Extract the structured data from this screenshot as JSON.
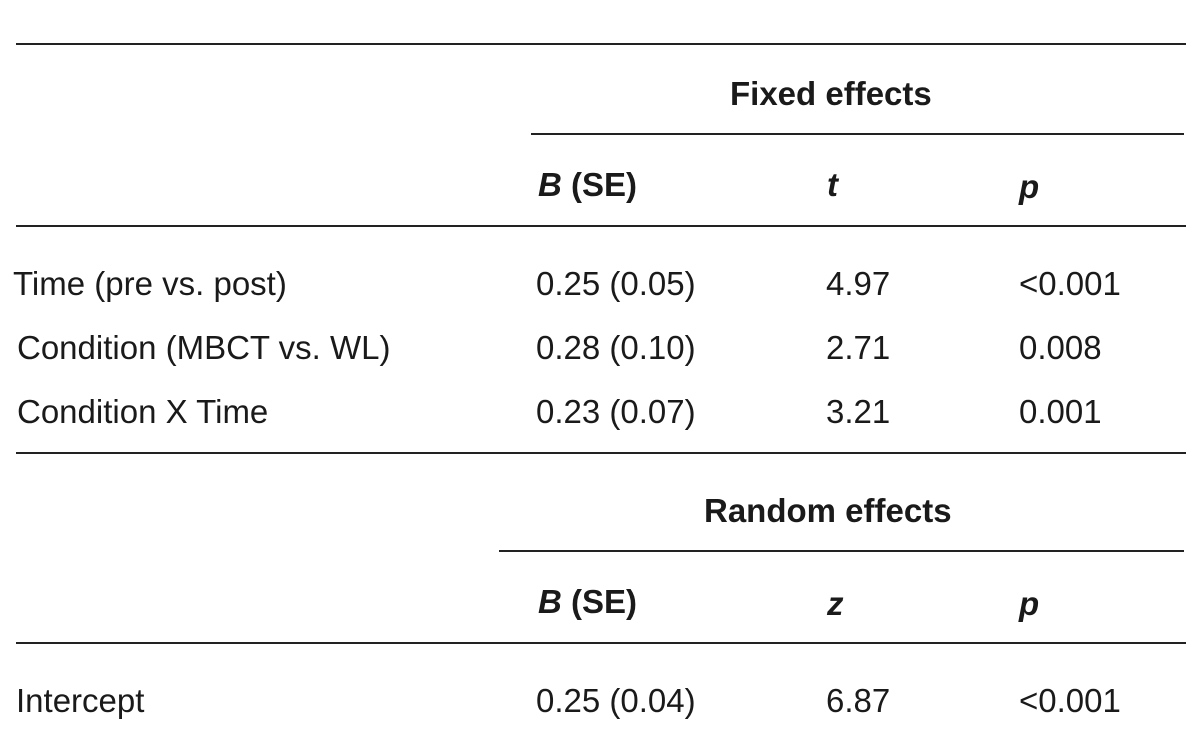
{
  "fixed": {
    "title": "Fixed effects",
    "col_b_symbol": "B",
    "col_b_se": " (SE)",
    "col_stat": "t",
    "col_p": "p",
    "rows": [
      {
        "label": "Time (pre vs. post)",
        "b_se": "0.25 (0.05)",
        "stat": "4.97",
        "p": "<0.001"
      },
      {
        "label": "Condition (MBCT vs. WL)",
        "b_se": "0.28 (0.10)",
        "stat": "2.71",
        "p": "0.008"
      },
      {
        "label": "Condition X Time",
        "b_se": "0.23 (0.07)",
        "stat": "3.21",
        "p": "0.001"
      }
    ]
  },
  "random": {
    "title": "Random effects",
    "col_b_symbol": "B",
    "col_b_se": " (SE)",
    "col_stat": "z",
    "col_p": "p",
    "rows": [
      {
        "label": "Intercept",
        "b_se": "0.25 (0.04)",
        "stat": "6.87",
        "p": "<0.001"
      }
    ]
  }
}
